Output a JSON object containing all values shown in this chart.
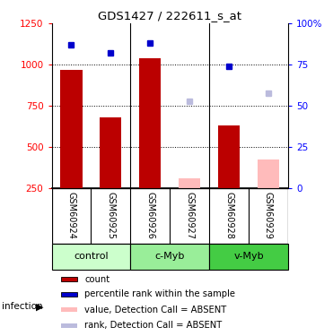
{
  "title": "GDS1427 / 222611_s_at",
  "samples": [
    "GSM60924",
    "GSM60925",
    "GSM60926",
    "GSM60927",
    "GSM60928",
    "GSM60929"
  ],
  "groups": [
    {
      "label": "control",
      "indices": [
        0,
        1
      ],
      "color": "#ccffcc"
    },
    {
      "label": "c-Myb",
      "indices": [
        2,
        3
      ],
      "color": "#99ee99"
    },
    {
      "label": "v-Myb",
      "indices": [
        4,
        5
      ],
      "color": "#44cc44"
    }
  ],
  "infection_label": "infection",
  "red_values": [
    970,
    680,
    1040,
    null,
    630,
    null
  ],
  "blue_values": [
    1120,
    1070,
    1130,
    null,
    990,
    null
  ],
  "pink_values": [
    null,
    null,
    null,
    310,
    null,
    420
  ],
  "lavender_values": [
    null,
    null,
    null,
    775,
    null,
    825
  ],
  "red_color": "#bb0000",
  "blue_color": "#0000cc",
  "pink_color": "#ffbbbb",
  "lavender_color": "#bbbbdd",
  "ylim_left": [
    250,
    1250
  ],
  "ylim_right": [
    0,
    100
  ],
  "yticks_left": [
    250,
    500,
    750,
    1000,
    1250
  ],
  "yticks_right": [
    0,
    25,
    50,
    75,
    100
  ],
  "ytick_labels_right": [
    "0",
    "25",
    "50",
    "75",
    "100%"
  ],
  "bar_bottom": 250,
  "grid_values": [
    500,
    750,
    1000
  ],
  "sample_area_bg": "#cccccc",
  "legend_items": [
    {
      "color": "#bb0000",
      "label": "count"
    },
    {
      "color": "#0000cc",
      "label": "percentile rank within the sample"
    },
    {
      "color": "#ffbbbb",
      "label": "value, Detection Call = ABSENT"
    },
    {
      "color": "#bbbbdd",
      "label": "rank, Detection Call = ABSENT"
    }
  ]
}
